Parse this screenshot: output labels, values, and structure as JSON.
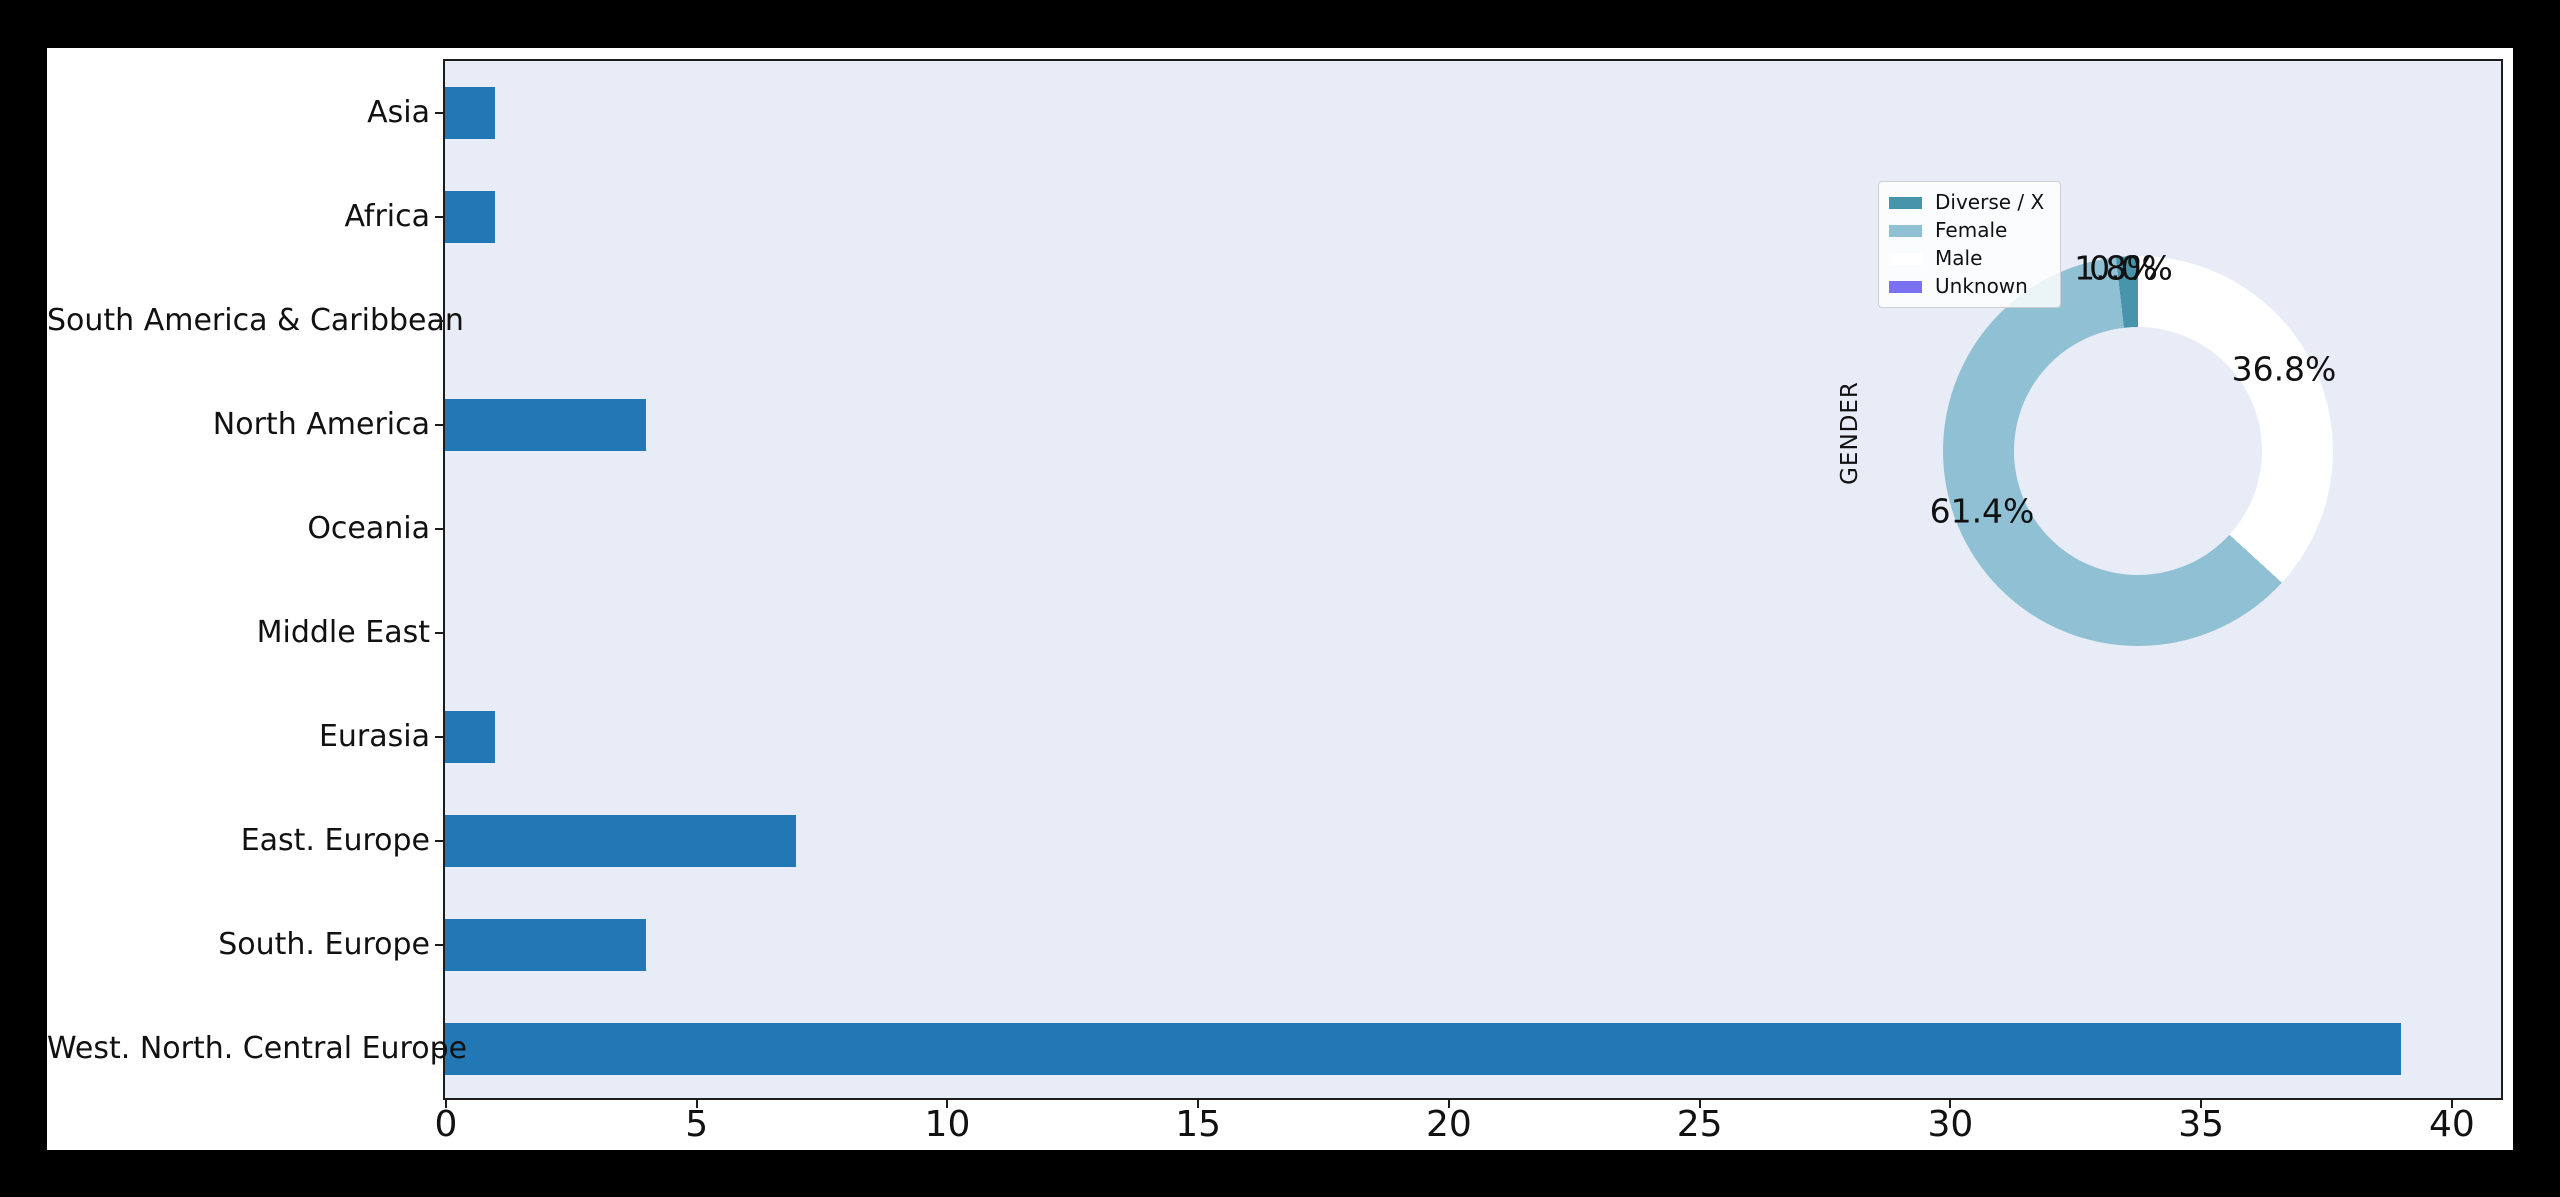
{
  "window": {
    "background": "#000000"
  },
  "figure": {
    "background": "#ffffff"
  },
  "chart_data": [
    {
      "type": "bar",
      "orientation": "horizontal",
      "title": "",
      "xlabel": "",
      "ylabel": "",
      "categories": [
        "Asia",
        "Africa",
        "South America & Caribbean",
        "North America",
        "Oceania",
        "Middle East",
        "Eurasia",
        "East. Europe",
        "South. Europe",
        "West. North. Central Europe"
      ],
      "values": [
        1,
        1,
        0,
        4,
        0,
        0,
        1,
        7,
        4,
        39
      ],
      "x_ticks": [
        "0",
        "5",
        "10",
        "15",
        "20",
        "25",
        "30",
        "35",
        "40"
      ],
      "xlim": [
        0,
        41
      ],
      "grid": false,
      "bar_color": "#2278b5",
      "plot_bg": "#e8ecf6",
      "axis_color": "#1c1c1c"
    },
    {
      "type": "pie",
      "donut": true,
      "axis_label": "GENDER",
      "start_angle": 90,
      "counterclock": true,
      "legend_position": "upper-left",
      "slices": [
        {
          "label": "Diverse / X",
          "pct": 1.8,
          "pct_label": "1.8%",
          "color": "#4794ab"
        },
        {
          "label": "Female",
          "pct": 61.4,
          "pct_label": "61.4%",
          "color": "#90c0d3"
        },
        {
          "label": "Male",
          "pct": 36.8,
          "pct_label": "36.8%",
          "color": "#ffffff"
        },
        {
          "label": "Unknown",
          "pct": 0.0,
          "pct_label": "0.0%",
          "color": "#7b71f0"
        }
      ]
    }
  ]
}
